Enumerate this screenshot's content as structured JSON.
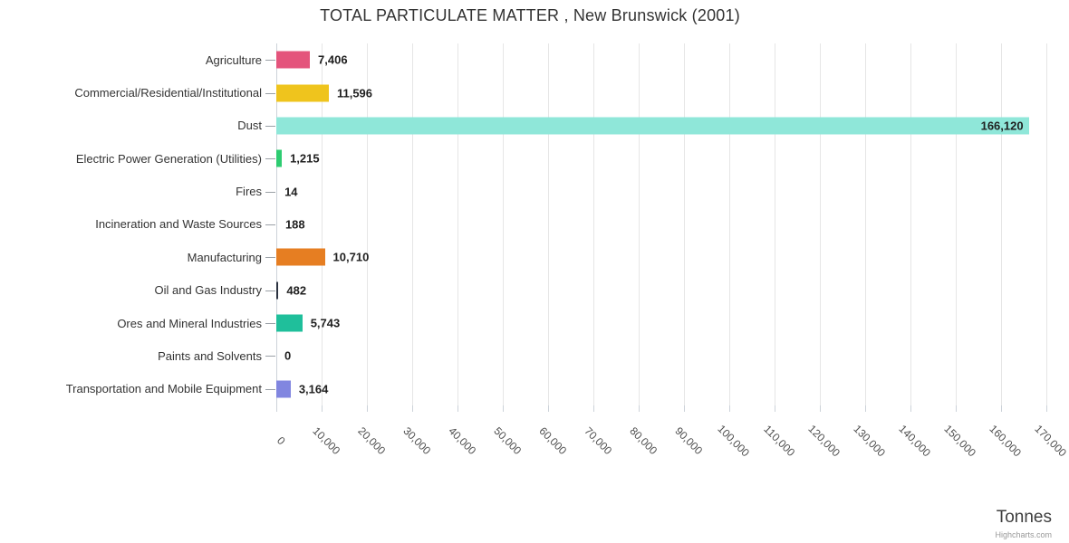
{
  "credits": "Highcharts.com",
  "colors": {
    "background": "#ffffff",
    "gridline": "#e6e6e6",
    "axis_line": "#ccd2d9",
    "category_tick": "#9aa0a6",
    "title_text": "#333333",
    "data_label_text": "#1f1f1f",
    "tick_label_text": "#4d4d4d",
    "credits_text": "#999999"
  },
  "chart_data": {
    "type": "bar",
    "orientation": "horizontal",
    "title": "TOTAL PARTICULATE MATTER , New Brunswick (2001)",
    "xlabel": "Tonnes",
    "ylabel": "",
    "xlim": [
      0,
      170000
    ],
    "tick_interval": 10000,
    "grid": true,
    "legend": false,
    "categories": [
      "Agriculture",
      "Commercial/Residential/Institutional",
      "Dust",
      "Electric Power Generation (Utilities)",
      "Fires",
      "Incineration and Waste Sources",
      "Manufacturing",
      "Oil and Gas Industry",
      "Ores and Mineral Industries",
      "Paints and Solvents",
      "Transportation and Mobile Equipment"
    ],
    "values": [
      7406,
      11596,
      166120,
      1215,
      14,
      188,
      10710,
      482,
      5743,
      0,
      3164
    ],
    "value_labels": [
      "7,406",
      "11,596",
      "166,120",
      "1,215",
      "14",
      "188",
      "10,710",
      "482",
      "5,743",
      "0",
      "3,164"
    ],
    "bar_colors": [
      "#e4547c",
      "#efc41d",
      "#8fe7d9",
      "#2ecc71",
      "#cccccc",
      "#cccccc",
      "#e67e22",
      "#2b3240",
      "#1fbf9b",
      "#cccccc",
      "#8186e0"
    ],
    "x_tick_labels": [
      "0",
      "10,000",
      "20,000",
      "30,000",
      "40,000",
      "50,000",
      "60,000",
      "70,000",
      "80,000",
      "90,000",
      "100,000",
      "110,000",
      "120,000",
      "130,000",
      "140,000",
      "150,000",
      "160,000",
      "170,000"
    ]
  }
}
